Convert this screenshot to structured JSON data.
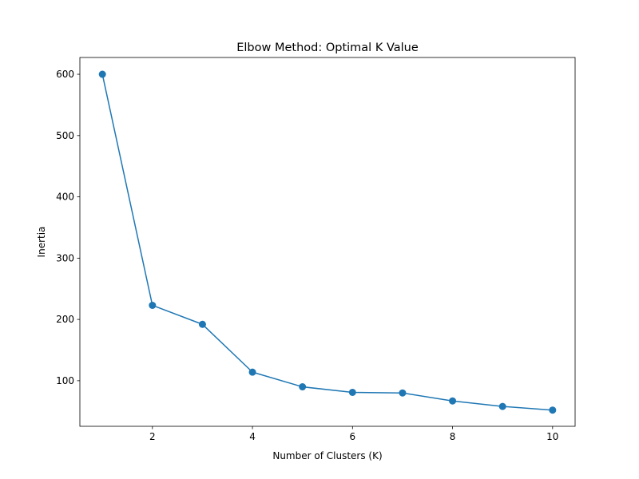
{
  "chart_data": {
    "type": "line",
    "title": "Elbow Method: Optimal K Value",
    "xlabel": "Number of Clusters (K)",
    "ylabel": "Inertia",
    "x": [
      1,
      2,
      3,
      4,
      5,
      6,
      7,
      8,
      9,
      10
    ],
    "series": [
      {
        "values": [
          600,
          223,
          192,
          114,
          90,
          81,
          80,
          67,
          58,
          52
        ],
        "color": "#1f77b4",
        "marker": "circle"
      }
    ],
    "xlim": [
      0.55,
      10.45
    ],
    "ylim": [
      25.6,
      627.4
    ],
    "xticks": [
      2,
      4,
      6,
      8,
      10
    ],
    "yticks": [
      100,
      200,
      300,
      400,
      500,
      600
    ],
    "grid": false,
    "legend": false
  }
}
